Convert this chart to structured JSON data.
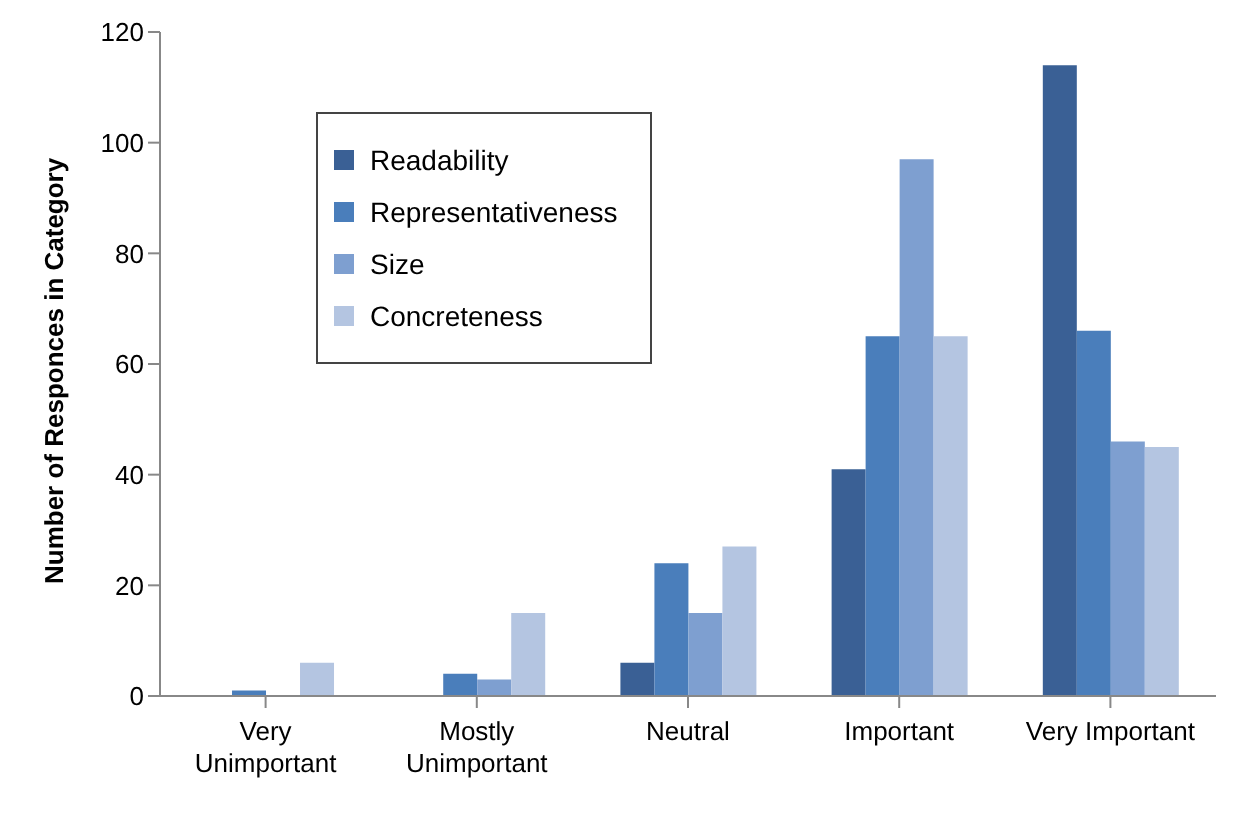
{
  "chart_data": {
    "type": "bar",
    "ylabel": "Number of Responces in Category",
    "categories": [
      "Very Unimportant",
      "Mostly Unimportant",
      "Neutral",
      "Important",
      "Very Important"
    ],
    "series": [
      {
        "name": "Readability",
        "color": "#3a6095",
        "values": [
          0,
          0,
          6,
          41,
          114
        ]
      },
      {
        "name": "Representativeness",
        "color": "#4a7ebb",
        "values": [
          1,
          4,
          24,
          65,
          66
        ]
      },
      {
        "name": "Size",
        "color": "#7e9fd0",
        "values": [
          0,
          3,
          15,
          97,
          46
        ]
      },
      {
        "name": "Concreteness",
        "color": "#b4c5e1",
        "values": [
          6,
          15,
          27,
          65,
          45
        ]
      }
    ],
    "ylim": [
      0,
      120
    ],
    "yticks": [
      0,
      20,
      40,
      60,
      80,
      100,
      120
    ],
    "grid": false,
    "legend": "top left"
  }
}
